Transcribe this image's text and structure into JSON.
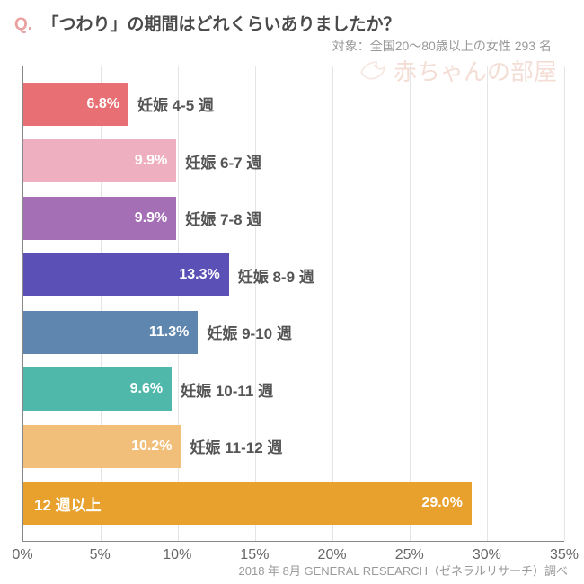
{
  "header": {
    "q_label": "Q.",
    "q_label_color": "#e9a0a0",
    "title": "「つわり」の期間はどれくらいありましたか？",
    "subtitle": "対象：全国20～80歳以上の女性 293 名"
  },
  "watermark": {
    "text": "赤ちゃんの部屋"
  },
  "chart": {
    "type": "bar-horizontal",
    "xmax": 35,
    "xtick_step": 5,
    "xticks": [
      "0%",
      "5%",
      "10%",
      "15%",
      "20%",
      "25%",
      "30%",
      "35%"
    ],
    "grid_color": "#e5e5e5",
    "bars": [
      {
        "value": 6.8,
        "value_label": "6.8%",
        "category": "妊娠 4-5 週",
        "color": "#e86f74",
        "label_inside": false
      },
      {
        "value": 9.9,
        "value_label": "9.9%",
        "category": "妊娠 6-7 週",
        "color": "#eeb0c0",
        "label_inside": false
      },
      {
        "value": 9.9,
        "value_label": "9.9%",
        "category": "妊娠 7-8 週",
        "color": "#a56fb5",
        "label_inside": false
      },
      {
        "value": 13.3,
        "value_label": "13.3%",
        "category": "妊娠 8-9 週",
        "color": "#5a50b5",
        "label_inside": false
      },
      {
        "value": 11.3,
        "value_label": "11.3%",
        "category": "妊娠 9-10 週",
        "color": "#5f86af",
        "label_inside": false
      },
      {
        "value": 9.6,
        "value_label": "9.6%",
        "category": "妊娠 10-11 週",
        "color": "#4fb8ab",
        "label_inside": false
      },
      {
        "value": 10.2,
        "value_label": "10.2%",
        "category": "妊娠 11-12 週",
        "color": "#f1bf7a",
        "label_inside": false
      },
      {
        "value": 29.0,
        "value_label": "29.0%",
        "category": "12 週以上",
        "color": "#e8a12d",
        "label_inside": true
      }
    ]
  },
  "footer": {
    "text": "2018 年 8月 GENERAL RESEARCH（ゼネラルリサーチ）調べ"
  }
}
